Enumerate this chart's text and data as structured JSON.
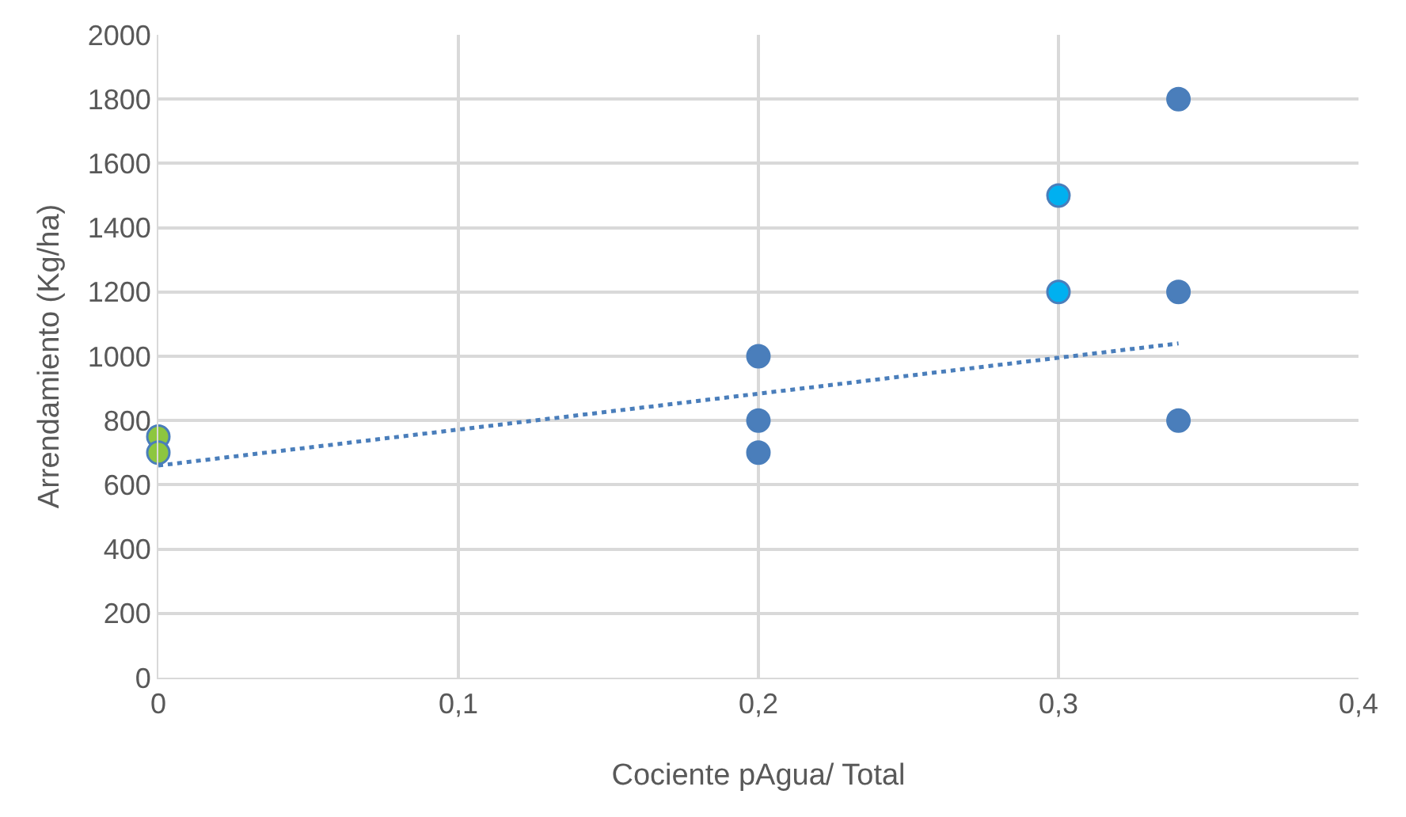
{
  "chart_data": {
    "type": "scatter",
    "xlabel": "Cociente pAgua/ Total",
    "ylabel": "Arrendamiento (Kg/ha)",
    "series": [
      {
        "color": "#8dc63f",
        "x": [
          0,
          0
        ],
        "values": [
          750,
          700
        ]
      },
      {
        "color": "#4a7ebb",
        "x": [
          0.2,
          0.2,
          0.2,
          0.34,
          0.34,
          0.34
        ],
        "values": [
          1000,
          800,
          700,
          1800,
          1200,
          800
        ]
      },
      {
        "color": "#00b0f0",
        "x": [
          0.3,
          0.3
        ],
        "values": [
          1500,
          1200
        ]
      },
      {
        "type": "line",
        "color": "#4a7ebb",
        "line_style": "dotted",
        "marker": "none",
        "x": [
          0,
          0.34
        ],
        "values": [
          660,
          1040
        ]
      }
    ],
    "xlim": [
      0,
      0.4
    ],
    "ylim": [
      0,
      2000
    ],
    "xticks": [
      0,
      {
        "value": 0.1,
        "label": "0,1"
      },
      {
        "value": 0.2,
        "label": "0,2"
      },
      {
        "value": 0.3,
        "label": "0,3"
      },
      {
        "value": 0.4,
        "label": "0,4"
      }
    ],
    "yticks": [
      0,
      200,
      400,
      600,
      800,
      1000,
      1200,
      1400,
      1600,
      1800,
      2000
    ],
    "grid": true,
    "marker": "circle"
  }
}
